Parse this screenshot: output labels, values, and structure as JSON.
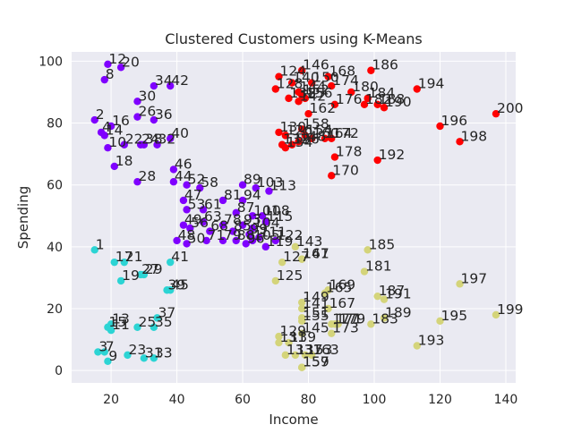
{
  "chart_data": {
    "type": "scatter",
    "title": "Clustered Customers using K-Means",
    "xlabel": "Income",
    "ylabel": "Spending",
    "xlim": [
      8,
      143
    ],
    "ylim": [
      -4,
      103
    ],
    "xticks": [
      20,
      40,
      60,
      80,
      100,
      120,
      140
    ],
    "yticks": [
      0,
      20,
      40,
      60,
      80,
      100
    ],
    "grid": true,
    "colors": {
      "plot_background": "#eaeaf2",
      "grid": "#ffffff",
      "purple_cluster": "#7f00ff",
      "cyan_cluster": "#2cd4d4",
      "red_cluster": "#ff0000",
      "olive_cluster": "#d4d47a",
      "text": "#262626"
    },
    "series": [
      {
        "color": "#7f00ff",
        "points": [
          {
            "x": 19,
            "y": 99,
            "label": "12"
          },
          {
            "x": 23,
            "y": 98,
            "label": "20"
          },
          {
            "x": 18,
            "y": 94,
            "label": "8"
          },
          {
            "x": 33,
            "y": 92,
            "label": "34"
          },
          {
            "x": 38,
            "y": 92,
            "label": "42"
          },
          {
            "x": 28,
            "y": 87,
            "label": "30"
          },
          {
            "x": 28,
            "y": 82,
            "label": "26"
          },
          {
            "x": 33,
            "y": 81,
            "label": "36"
          },
          {
            "x": 15,
            "y": 81,
            "label": "2"
          },
          {
            "x": 20,
            "y": 79,
            "label": "16"
          },
          {
            "x": 17,
            "y": 77,
            "label": "4"
          },
          {
            "x": 18,
            "y": 76,
            "label": "14"
          },
          {
            "x": 38,
            "y": 75,
            "label": "40"
          },
          {
            "x": 19,
            "y": 72,
            "label": "10"
          },
          {
            "x": 24,
            "y": 73,
            "label": "22"
          },
          {
            "x": 29,
            "y": 73,
            "label": "24"
          },
          {
            "x": 34,
            "y": 73,
            "label": "32"
          },
          {
            "x": 30,
            "y": 73,
            "label": "38"
          },
          {
            "x": 21,
            "y": 66,
            "label": "18"
          },
          {
            "x": 39,
            "y": 65,
            "label": "46"
          },
          {
            "x": 28,
            "y": 61,
            "label": "28"
          },
          {
            "x": 39,
            "y": 61,
            "label": "44"
          },
          {
            "x": 43,
            "y": 60,
            "label": "52"
          },
          {
            "x": 47,
            "y": 59,
            "label": "58"
          },
          {
            "x": 60,
            "y": 60,
            "label": "89"
          },
          {
            "x": 64,
            "y": 59,
            "label": "103"
          },
          {
            "x": 68,
            "y": 58,
            "label": "113"
          },
          {
            "x": 42,
            "y": 55,
            "label": "47"
          },
          {
            "x": 54,
            "y": 55,
            "label": "81"
          },
          {
            "x": 60,
            "y": 55,
            "label": "94"
          },
          {
            "x": 43,
            "y": 52,
            "label": "53"
          },
          {
            "x": 48,
            "y": 52,
            "label": "61"
          },
          {
            "x": 58,
            "y": 51,
            "label": "87"
          },
          {
            "x": 63,
            "y": 50,
            "label": "101"
          },
          {
            "x": 66,
            "y": 50,
            "label": "108"
          },
          {
            "x": 42,
            "y": 47,
            "label": "49"
          },
          {
            "x": 48,
            "y": 48,
            "label": "63"
          },
          {
            "x": 54,
            "y": 47,
            "label": "78"
          },
          {
            "x": 60,
            "y": 47,
            "label": "93"
          },
          {
            "x": 63,
            "y": 46,
            "label": "104"
          },
          {
            "x": 67,
            "y": 48,
            "label": "115"
          },
          {
            "x": 44,
            "y": 46,
            "label": "56"
          },
          {
            "x": 50,
            "y": 45,
            "label": "68"
          },
          {
            "x": 57,
            "y": 45,
            "label": "85"
          },
          {
            "x": 62,
            "y": 44,
            "label": "99"
          },
          {
            "x": 40,
            "y": 42,
            "label": "48"
          },
          {
            "x": 43,
            "y": 41,
            "label": "50"
          },
          {
            "x": 49,
            "y": 42,
            "label": "71"
          },
          {
            "x": 54,
            "y": 42,
            "label": "79"
          },
          {
            "x": 58,
            "y": 42,
            "label": "88"
          },
          {
            "x": 61,
            "y": 41,
            "label": "96"
          },
          {
            "x": 63,
            "y": 42,
            "label": "105"
          },
          {
            "x": 65,
            "y": 43,
            "label": "111"
          },
          {
            "x": 67,
            "y": 40,
            "label": "119"
          },
          {
            "x": 70,
            "y": 42,
            "label": "122"
          }
        ]
      },
      {
        "color": "#2cd4d4",
        "points": [
          {
            "x": 15,
            "y": 39,
            "label": "1"
          },
          {
            "x": 21,
            "y": 35,
            "label": "17"
          },
          {
            "x": 24,
            "y": 35,
            "label": "21"
          },
          {
            "x": 38,
            "y": 35,
            "label": "41"
          },
          {
            "x": 29,
            "y": 31,
            "label": "27"
          },
          {
            "x": 30,
            "y": 31,
            "label": "29"
          },
          {
            "x": 23,
            "y": 29,
            "label": "19"
          },
          {
            "x": 37,
            "y": 26,
            "label": "39"
          },
          {
            "x": 38,
            "y": 26,
            "label": "45"
          },
          {
            "x": 34,
            "y": 17,
            "label": "37"
          },
          {
            "x": 33,
            "y": 14,
            "label": "35"
          },
          {
            "x": 28,
            "y": 14,
            "label": "25"
          },
          {
            "x": 20,
            "y": 15,
            "label": "13"
          },
          {
            "x": 20,
            "y": 13,
            "label": "11"
          },
          {
            "x": 19,
            "y": 14,
            "label": "15"
          },
          {
            "x": 16,
            "y": 6,
            "label": "3"
          },
          {
            "x": 18,
            "y": 6,
            "label": "7"
          },
          {
            "x": 19,
            "y": 3,
            "label": "9"
          },
          {
            "x": 25,
            "y": 5,
            "label": "23"
          },
          {
            "x": 30,
            "y": 4,
            "label": "31"
          },
          {
            "x": 33,
            "y": 4,
            "label": "33"
          }
        ]
      },
      {
        "color": "#ff0000",
        "points": [
          {
            "x": 78,
            "y": 97,
            "label": "146"
          },
          {
            "x": 71,
            "y": 95,
            "label": "124"
          },
          {
            "x": 86,
            "y": 95,
            "label": "168"
          },
          {
            "x": 99,
            "y": 97,
            "label": "186"
          },
          {
            "x": 81,
            "y": 93,
            "label": "150"
          },
          {
            "x": 87,
            "y": 92,
            "label": "174"
          },
          {
            "x": 70,
            "y": 91,
            "label": "128"
          },
          {
            "x": 75,
            "y": 93,
            "label": "140"
          },
          {
            "x": 77,
            "y": 90,
            "label": "144"
          },
          {
            "x": 93,
            "y": 90,
            "label": "180"
          },
          {
            "x": 113,
            "y": 91,
            "label": "194"
          },
          {
            "x": 78,
            "y": 89,
            "label": "152"
          },
          {
            "x": 79,
            "y": 88,
            "label": "156"
          },
          {
            "x": 74,
            "y": 88,
            "label": "138"
          },
          {
            "x": 97,
            "y": 86,
            "label": "182"
          },
          {
            "x": 98,
            "y": 88,
            "label": "184"
          },
          {
            "x": 101,
            "y": 86,
            "label": "188"
          },
          {
            "x": 103,
            "y": 85,
            "label": "190"
          },
          {
            "x": 88,
            "y": 86,
            "label": "176"
          },
          {
            "x": 77,
            "y": 87,
            "label": "142"
          },
          {
            "x": 80,
            "y": 83,
            "label": "162"
          },
          {
            "x": 137,
            "y": 83,
            "label": "200"
          },
          {
            "x": 120,
            "y": 79,
            "label": "196"
          },
          {
            "x": 78,
            "y": 78,
            "label": "158"
          },
          {
            "x": 73,
            "y": 76,
            "label": "126"
          },
          {
            "x": 71,
            "y": 77,
            "label": "130"
          },
          {
            "x": 79,
            "y": 76,
            "label": "154"
          },
          {
            "x": 81,
            "y": 75,
            "label": "160"
          },
          {
            "x": 85,
            "y": 75,
            "label": "164"
          },
          {
            "x": 87,
            "y": 75,
            "label": "172"
          },
          {
            "x": 126,
            "y": 74,
            "label": "198"
          },
          {
            "x": 72,
            "y": 73,
            "label": "132"
          },
          {
            "x": 75,
            "y": 73,
            "label": "136"
          },
          {
            "x": 77,
            "y": 74,
            "label": "148"
          },
          {
            "x": 73,
            "y": 72,
            "label": "134"
          },
          {
            "x": 88,
            "y": 69,
            "label": "178"
          },
          {
            "x": 101,
            "y": 68,
            "label": "192"
          },
          {
            "x": 87,
            "y": 63,
            "label": "170"
          }
        ]
      },
      {
        "color": "#d4d47a",
        "points": [
          {
            "x": 76,
            "y": 40,
            "label": "143"
          },
          {
            "x": 98,
            "y": 39,
            "label": "185"
          },
          {
            "x": 78,
            "y": 36,
            "label": "147"
          },
          {
            "x": 78,
            "y": 36,
            "label": "161"
          },
          {
            "x": 72,
            "y": 35,
            "label": "127"
          },
          {
            "x": 97,
            "y": 32,
            "label": "181"
          },
          {
            "x": 70,
            "y": 29,
            "label": "125"
          },
          {
            "x": 126,
            "y": 28,
            "label": "197"
          },
          {
            "x": 86,
            "y": 26,
            "label": "169"
          },
          {
            "x": 85,
            "y": 25,
            "label": "165"
          },
          {
            "x": 101,
            "y": 24,
            "label": "187"
          },
          {
            "x": 103,
            "y": 23,
            "label": "191"
          },
          {
            "x": 78,
            "y": 22,
            "label": "149"
          },
          {
            "x": 78,
            "y": 20,
            "label": "141"
          },
          {
            "x": 86,
            "y": 20,
            "label": "167"
          },
          {
            "x": 103,
            "y": 17,
            "label": "189"
          },
          {
            "x": 137,
            "y": 18,
            "label": "199"
          },
          {
            "x": 78,
            "y": 17,
            "label": "151"
          },
          {
            "x": 78,
            "y": 16,
            "label": "155"
          },
          {
            "x": 88,
            "y": 15,
            "label": "171"
          },
          {
            "x": 87,
            "y": 15,
            "label": "177"
          },
          {
            "x": 89,
            "y": 15,
            "label": "179"
          },
          {
            "x": 99,
            "y": 15,
            "label": "183"
          },
          {
            "x": 120,
            "y": 16,
            "label": "195"
          },
          {
            "x": 78,
            "y": 12,
            "label": "145"
          },
          {
            "x": 71,
            "y": 11,
            "label": "129"
          },
          {
            "x": 87,
            "y": 12,
            "label": "173"
          },
          {
            "x": 71,
            "y": 9,
            "label": "131"
          },
          {
            "x": 74,
            "y": 9,
            "label": "139"
          },
          {
            "x": 113,
            "y": 8,
            "label": "193"
          },
          {
            "x": 73,
            "y": 5,
            "label": "133"
          },
          {
            "x": 76,
            "y": 5,
            "label": "137"
          },
          {
            "x": 79,
            "y": 5,
            "label": "153"
          },
          {
            "x": 81,
            "y": 5,
            "label": "163"
          },
          {
            "x": 78,
            "y": 1,
            "label": "157"
          },
          {
            "x": 78,
            "y": 1,
            "label": "159"
          }
        ]
      }
    ]
  }
}
